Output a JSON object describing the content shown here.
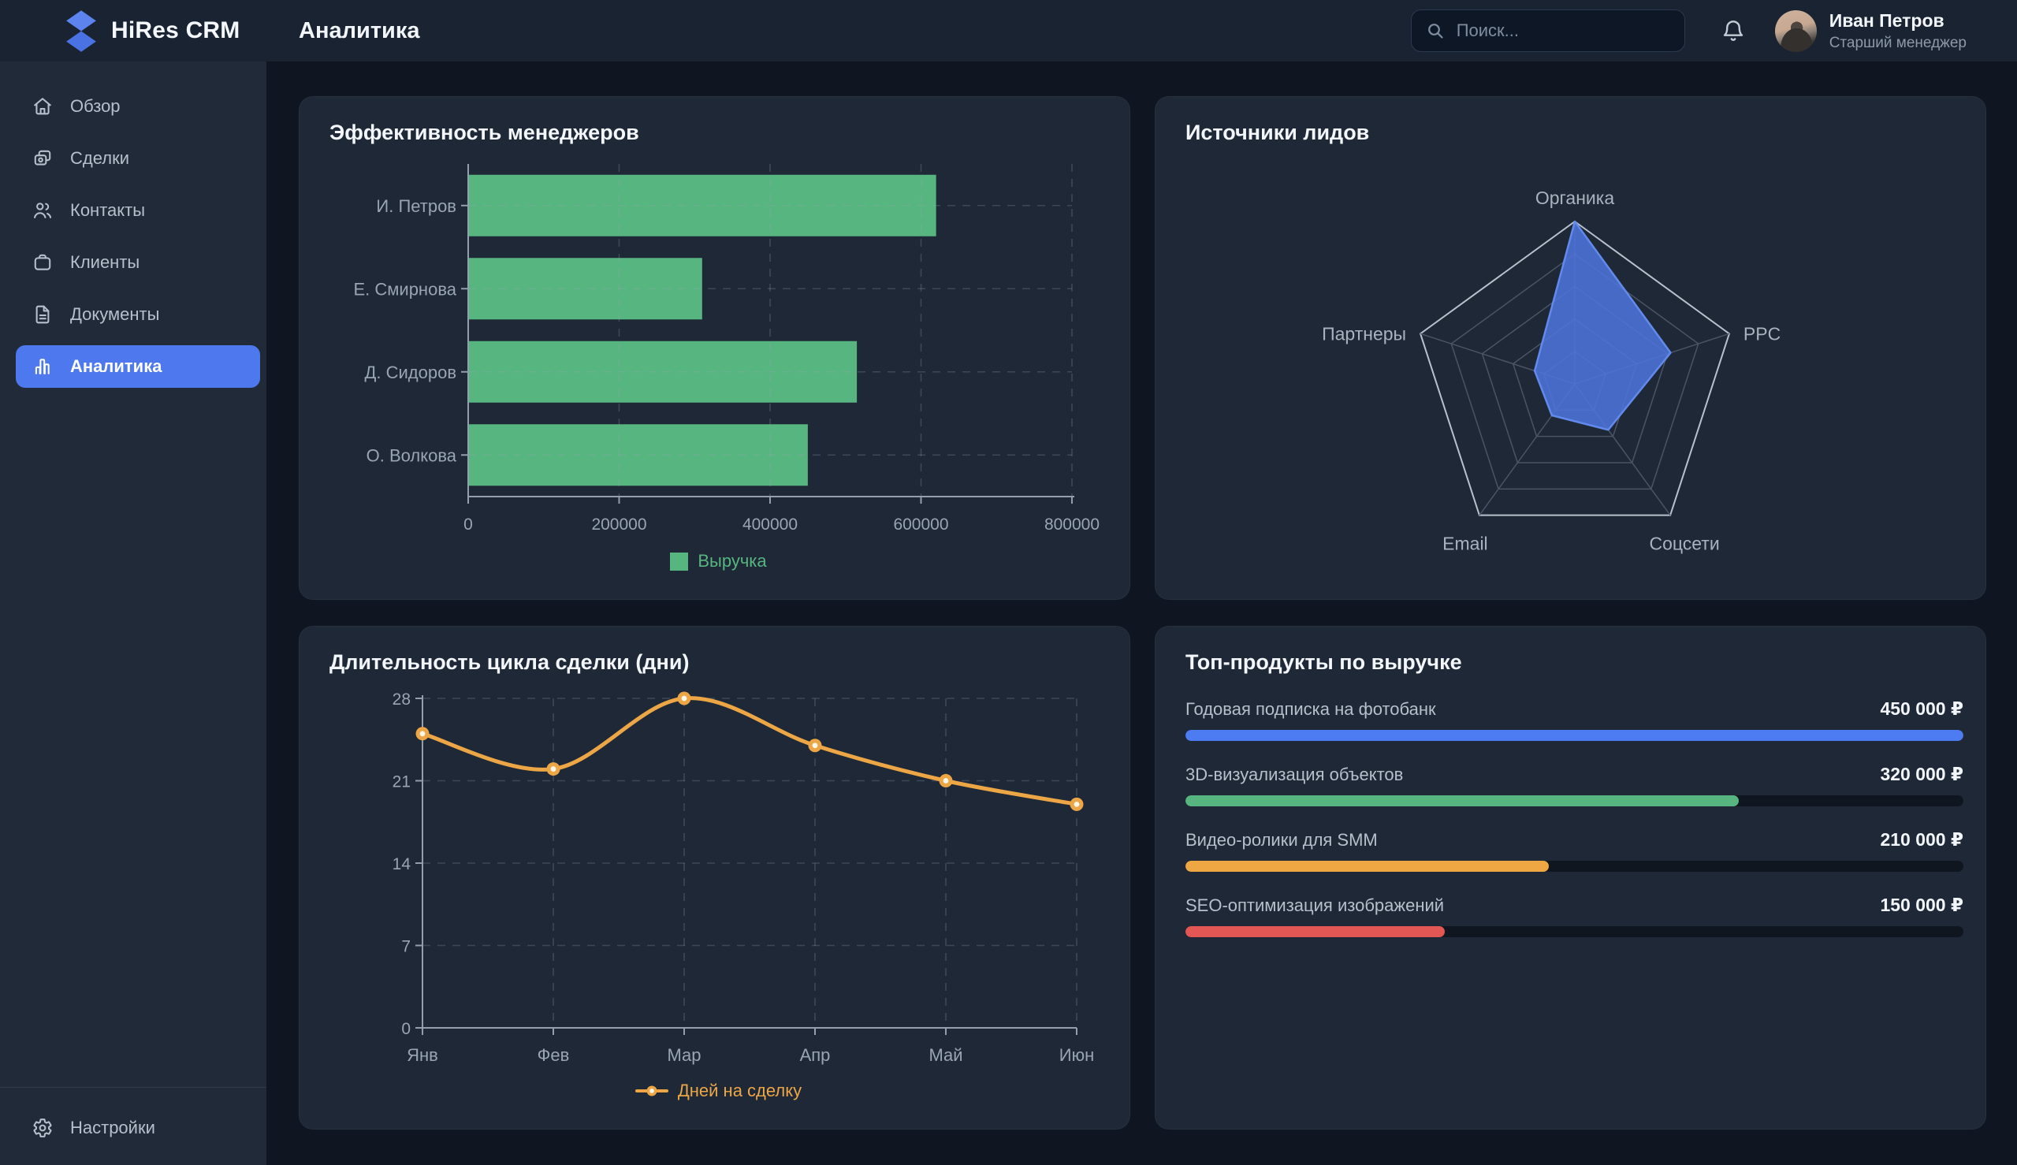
{
  "app": {
    "brand": "HiRes CRM",
    "page_title": "Аналитика"
  },
  "topbar": {
    "search_placeholder": "Поиск...",
    "icons": [
      "search-icon",
      "bell-icon"
    ],
    "user": {
      "name": "Иван Петров",
      "role": "Старший менеджер"
    }
  },
  "sidebar": {
    "items": [
      {
        "id": "overview",
        "label": "Обзор",
        "icon": "home-icon",
        "active": false
      },
      {
        "id": "deals",
        "label": "Сделки",
        "icon": "deals-icon",
        "active": false
      },
      {
        "id": "contacts",
        "label": "Контакты",
        "icon": "contacts-icon",
        "active": false
      },
      {
        "id": "clients",
        "label": "Клиенты",
        "icon": "clients-icon",
        "active": false
      },
      {
        "id": "documents",
        "label": "Документы",
        "icon": "documents-icon",
        "active": false
      },
      {
        "id": "analytics",
        "label": "Аналитика",
        "icon": "analytics-icon",
        "active": true
      }
    ],
    "footer_item": {
      "id": "settings",
      "label": "Настройки",
      "icon": "settings-icon",
      "active": false
    }
  },
  "theme": {
    "accent_blue": "#4d78ee",
    "green": "#57b580",
    "orange": "#eea743",
    "red": "#e25654",
    "bg_main": "#0f1621",
    "bg_card": "#1e2836",
    "bg_topbar": "#1a2332",
    "bg_sidebar": "#202a38",
    "text_secondary": "#9aa5b3"
  },
  "chart_data": [
    {
      "id": "managers_efficiency",
      "type": "bar",
      "orientation": "horizontal",
      "title": "Эффективность менеджеров",
      "categories": [
        "И. Петров",
        "Е. Смирнова",
        "Д. Сидоров",
        "О. Волкова"
      ],
      "series": [
        {
          "name": "Выручка",
          "color": "#57b580",
          "values": [
            620000,
            310000,
            515000,
            450000
          ]
        }
      ],
      "x_ticks": [
        0,
        200000,
        400000,
        600000,
        800000
      ],
      "xlim": [
        0,
        800000
      ],
      "grid": true,
      "legend_position": "bottom"
    },
    {
      "id": "lead_sources",
      "type": "radar",
      "title": "Источники лидов",
      "axes": [
        "Органика",
        "PPC",
        "Соцсети",
        "Email",
        "Партнеры"
      ],
      "values": [
        100,
        62,
        35,
        24,
        26
      ],
      "max": 100,
      "grid_levels": 5,
      "fill": "rgba(77,118,222,0.85)",
      "stroke": "#6289ec"
    },
    {
      "id": "deal_cycle_days",
      "type": "line",
      "title": "Длительность цикла сделки (дни)",
      "x": [
        "Янв",
        "Фев",
        "Мар",
        "Апр",
        "Май",
        "Июн"
      ],
      "series": [
        {
          "name": "Дней на сделку",
          "color": "#eca645",
          "values": [
            25,
            22,
            28,
            24,
            21,
            19
          ]
        }
      ],
      "y_ticks": [
        0,
        7,
        14,
        21,
        28
      ],
      "ylim": [
        0,
        28
      ],
      "smooth": true,
      "grid": true,
      "legend_position": "bottom"
    },
    {
      "id": "top_products",
      "type": "table",
      "title": "Топ-продукты по выручке",
      "max": 450000,
      "rows": [
        {
          "label": "Годовая подписка на фотобанк",
          "value": 450000,
          "value_label": "450 000 ₽",
          "color": "#4d7cf2"
        },
        {
          "label": "3D-визуализация объектов",
          "value": 320000,
          "value_label": "320 000 ₽",
          "color": "#57b580"
        },
        {
          "label": "Видео-ролики для SMM",
          "value": 210000,
          "value_label": "210 000 ₽",
          "color": "#eea743"
        },
        {
          "label": "SEO-оптимизация изображений",
          "value": 150000,
          "value_label": "150 000 ₽",
          "color": "#e25654"
        }
      ]
    }
  ]
}
